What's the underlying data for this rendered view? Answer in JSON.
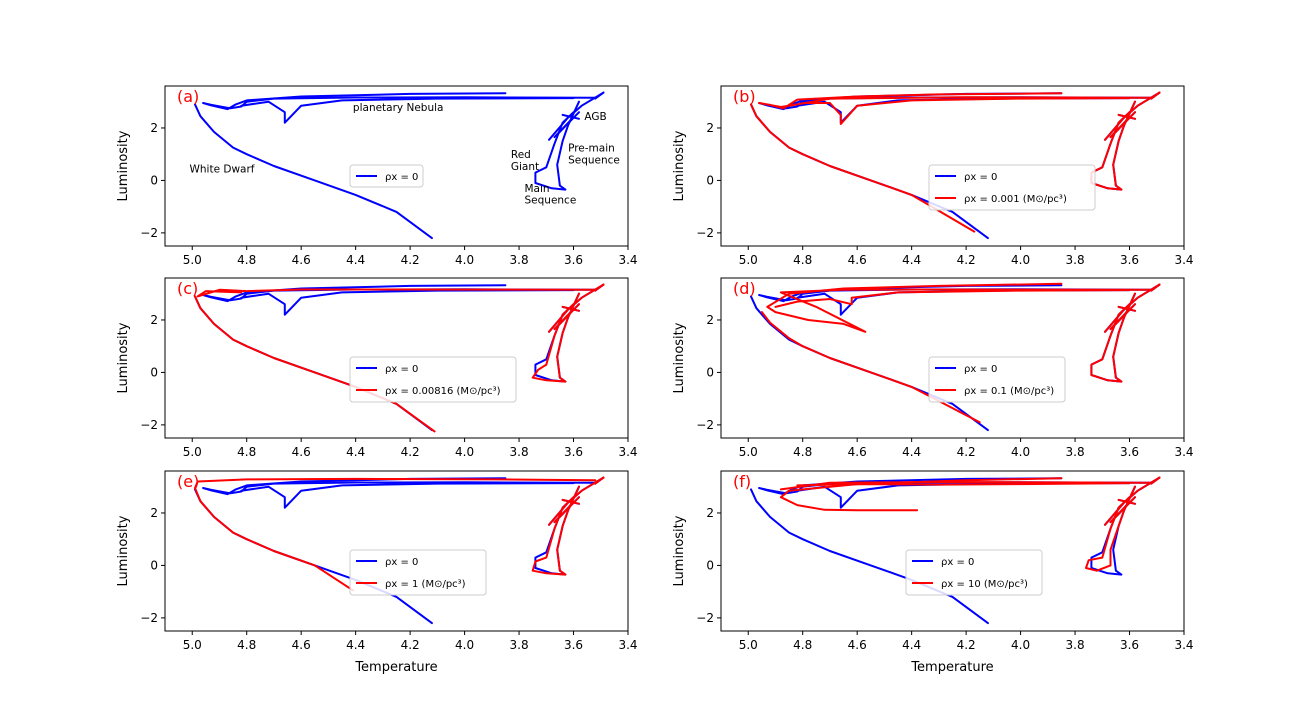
{
  "figure": {
    "xlabel": "Temperature",
    "ylabel": "Luminosity"
  },
  "chart_data": [
    {
      "type": "line",
      "panel": "(a)",
      "xlabel": "",
      "ylabel": "Luminosity",
      "xlim": [
        5.1,
        3.4
      ],
      "ylim": [
        -2.5,
        3.6
      ],
      "xticks": [
        "5.0",
        "4.8",
        "4.6",
        "4.4",
        "4.2",
        "4.0",
        "3.8",
        "3.6",
        "3.4"
      ],
      "yticks": [
        "2",
        "0",
        "−2"
      ],
      "legend_position": "center",
      "legend": [
        {
          "label": "ρx = 0",
          "color": "#0000ff"
        }
      ],
      "annotations": [
        "planetary Nebula",
        "AGB",
        "Red Giant",
        "Pre-main Sequence",
        "White Dwarf",
        "Main Sequence"
      ],
      "series": [
        {
          "name": "ρx = 0",
          "color": "#0000ff",
          "variant": "base"
        }
      ]
    },
    {
      "type": "line",
      "panel": "(b)",
      "xlabel": "",
      "ylabel": "Luminosity",
      "xlim": [
        5.1,
        3.4
      ],
      "ylim": [
        -2.5,
        3.6
      ],
      "xticks": [
        "5.0",
        "4.8",
        "4.6",
        "4.4",
        "4.2",
        "4.0",
        "3.8",
        "3.6",
        "3.4"
      ],
      "yticks": [
        "2",
        "0",
        "−2"
      ],
      "legend_position": "center-right",
      "legend": [
        {
          "label": "ρx = 0",
          "color": "#0000ff"
        },
        {
          "label": "ρx = 0.001 (M⊙/pc³)",
          "color": "#ff0000"
        }
      ],
      "series": [
        {
          "name": "ρx = 0",
          "color": "#0000ff",
          "variant": "base"
        },
        {
          "name": "ρx = 0.001 (M⊙/pc³)",
          "color": "#ff0000",
          "variant": "b"
        }
      ]
    },
    {
      "type": "line",
      "panel": "(c)",
      "xlabel": "",
      "ylabel": "Luminosity",
      "xlim": [
        5.1,
        3.4
      ],
      "ylim": [
        -2.5,
        3.6
      ],
      "xticks": [
        "5.0",
        "4.8",
        "4.6",
        "4.4",
        "4.2",
        "4.0",
        "3.8",
        "3.6",
        "3.4"
      ],
      "yticks": [
        "2",
        "0",
        "−2"
      ],
      "legend_position": "center",
      "legend": [
        {
          "label": "ρx = 0",
          "color": "#0000ff"
        },
        {
          "label": "ρx = 0.00816 (M⊙/pc³)",
          "color": "#ff0000"
        }
      ],
      "series": [
        {
          "name": "ρx = 0",
          "color": "#0000ff",
          "variant": "base"
        },
        {
          "name": "ρx = 0.00816 (M⊙/pc³)",
          "color": "#ff0000",
          "variant": "c"
        }
      ]
    },
    {
      "type": "line",
      "panel": "(d)",
      "xlabel": "",
      "ylabel": "Luminosity",
      "xlim": [
        5.1,
        3.4
      ],
      "ylim": [
        -2.5,
        3.6
      ],
      "xticks": [
        "5.0",
        "4.8",
        "4.6",
        "4.4",
        "4.2",
        "4.0",
        "3.8",
        "3.6",
        "3.4"
      ],
      "yticks": [
        "2",
        "0",
        "−2"
      ],
      "legend_position": "center-right",
      "legend": [
        {
          "label": "ρx = 0",
          "color": "#0000ff"
        },
        {
          "label": "ρx = 0.1 (M⊙/pc³)",
          "color": "#ff0000"
        }
      ],
      "series": [
        {
          "name": "ρx = 0",
          "color": "#0000ff",
          "variant": "base"
        },
        {
          "name": "ρx = 0.1 (M⊙/pc³)",
          "color": "#ff0000",
          "variant": "d"
        }
      ]
    },
    {
      "type": "line",
      "panel": "(e)",
      "xlabel": "Temperature",
      "ylabel": "Luminosity",
      "xlim": [
        5.1,
        3.4
      ],
      "ylim": [
        -2.5,
        3.6
      ],
      "xticks": [
        "5.0",
        "4.8",
        "4.6",
        "4.4",
        "4.2",
        "4.0",
        "3.8",
        "3.6",
        "3.4"
      ],
      "yticks": [
        "2",
        "0",
        "−2"
      ],
      "legend_position": "center",
      "legend": [
        {
          "label": "ρx = 0",
          "color": "#0000ff"
        },
        {
          "label": "ρx = 1 (M⊙/pc³)",
          "color": "#ff0000"
        }
      ],
      "series": [
        {
          "name": "ρx = 0",
          "color": "#0000ff",
          "variant": "base"
        },
        {
          "name": "ρx = 1 (M⊙/pc³)",
          "color": "#ff0000",
          "variant": "e"
        }
      ]
    },
    {
      "type": "line",
      "panel": "(f)",
      "xlabel": "Temperature",
      "ylabel": "Luminosity",
      "xlim": [
        5.1,
        3.4
      ],
      "ylim": [
        -2.5,
        3.6
      ],
      "xticks": [
        "5.0",
        "4.8",
        "4.6",
        "4.4",
        "4.2",
        "4.0",
        "3.8",
        "3.6",
        "3.4"
      ],
      "yticks": [
        "2",
        "0",
        "−2"
      ],
      "legend_position": "center",
      "legend": [
        {
          "label": "ρx = 0",
          "color": "#0000ff"
        },
        {
          "label": "ρx = 10 (M⊙/pc³)",
          "color": "#ff0000"
        }
      ],
      "series": [
        {
          "name": "ρx = 0",
          "color": "#0000ff",
          "variant": "base"
        },
        {
          "name": "ρx = 10 (M⊙/pc³)",
          "color": "#ff0000",
          "variant": "f"
        }
      ]
    }
  ]
}
